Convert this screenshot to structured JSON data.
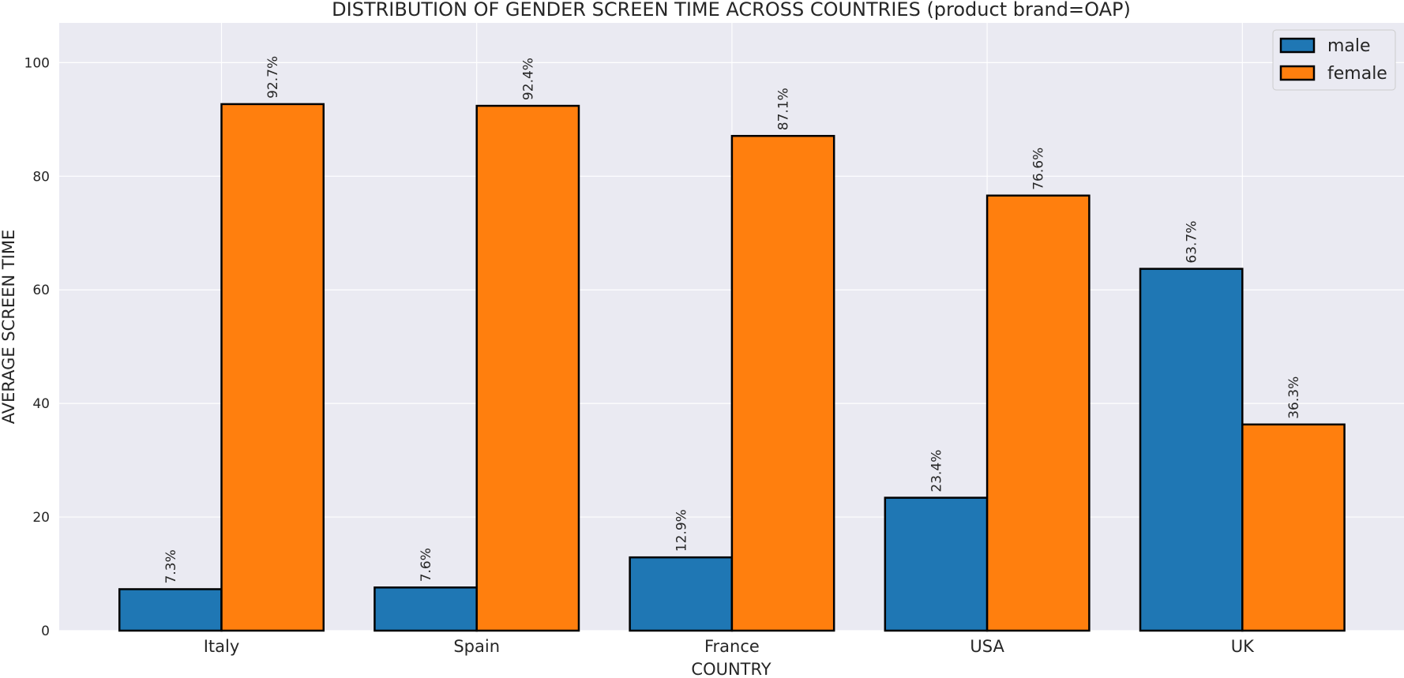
{
  "chart_data": {
    "type": "bar",
    "title": "DISTRIBUTION OF GENDER SCREEN TIME ACROSS COUNTRIES (product brand=OAP)",
    "xlabel": "COUNTRY",
    "ylabel": "AVERAGE SCREEN TIME",
    "categories": [
      "Italy",
      "Spain",
      "France",
      "USA",
      "UK"
    ],
    "series": [
      {
        "name": "male",
        "color": "#1f77b4",
        "values": [
          7.3,
          7.6,
          12.9,
          23.4,
          63.7
        ],
        "labels": [
          "7.3%",
          "7.6%",
          "12.9%",
          "23.4%",
          "63.7%"
        ]
      },
      {
        "name": "female",
        "color": "#ff7f0e",
        "values": [
          92.7,
          92.4,
          87.1,
          76.6,
          36.3
        ],
        "labels": [
          "92.7%",
          "92.4%",
          "87.1%",
          "76.6%",
          "36.3%"
        ]
      }
    ],
    "ylim": [
      0,
      107
    ],
    "yticks": [
      0,
      20,
      40,
      60,
      80,
      100
    ],
    "grid": true,
    "legend": "top-right",
    "background": "#eaeaf2"
  }
}
